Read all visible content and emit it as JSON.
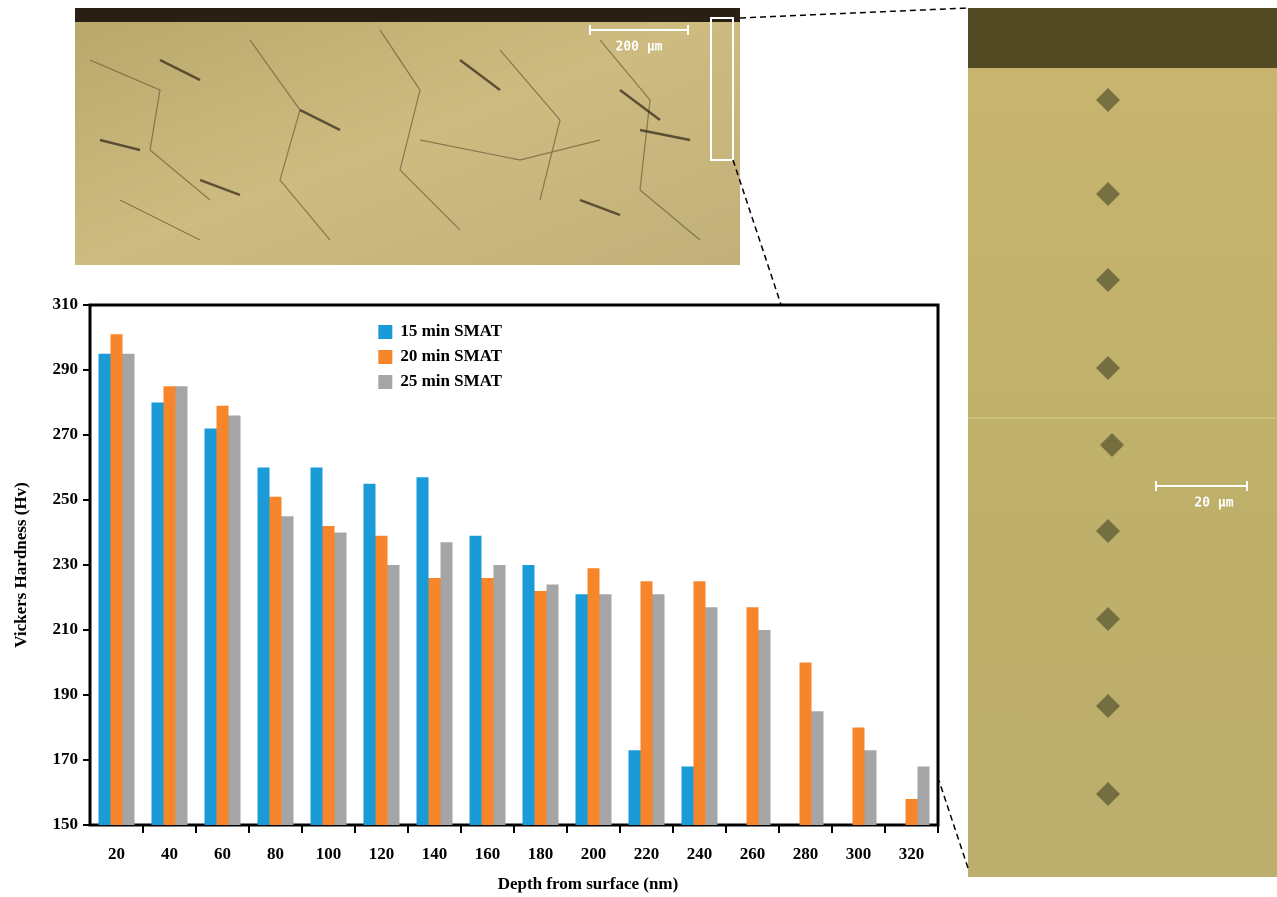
{
  "chart_data": {
    "type": "bar",
    "xlabel": "Depth from surface (nm)",
    "ylabel": "Vickers Hardness (Hv)",
    "categories": [
      "20",
      "40",
      "60",
      "80",
      "100",
      "120",
      "140",
      "160",
      "180",
      "200",
      "220",
      "240",
      "260",
      "280",
      "300",
      "320"
    ],
    "series": [
      {
        "name": "15 min SMAT",
        "color": "#1a9bd7",
        "values": [
          295,
          280,
          272,
          260,
          260,
          255,
          257,
          239,
          230,
          221,
          173,
          168,
          null,
          null,
          null,
          null
        ]
      },
      {
        "name": "20 min SMAT",
        "color": "#f7862a",
        "values": [
          301,
          285,
          279,
          251,
          242,
          239,
          226,
          226,
          222,
          229,
          225,
          225,
          217,
          200,
          180,
          158
        ]
      },
      {
        "name": "25 min SMAT",
        "color": "#a5a5a5",
        "values": [
          295,
          285,
          276,
          245,
          240,
          230,
          237,
          230,
          224,
          221,
          221,
          217,
          210,
          185,
          173,
          168
        ]
      }
    ],
    "ylim": [
      150,
      310
    ],
    "yticks": [
      150,
      170,
      190,
      210,
      230,
      250,
      270,
      290,
      310
    ],
    "legend": "upper center",
    "grid": false
  },
  "images": {
    "top_scale_bar": "200 μm",
    "right_scale_bar": "20 μm"
  }
}
